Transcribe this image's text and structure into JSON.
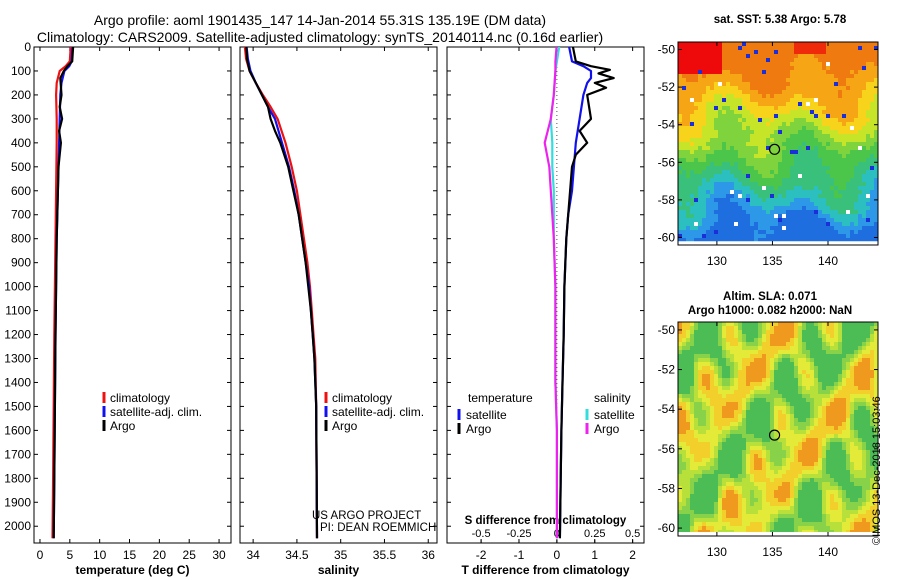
{
  "header": {
    "line1": "Argo profile: aoml 1901435_147 14-Jan-2014 55.31S 135.19E (DM data)",
    "line2": "Climatology: CARS2009. Satellite-adjusted climatology: synTS_20140114.nc (0.16d earlier)"
  },
  "project_text": {
    "line1": "US ARGO PROJECT",
    "line2": "PI: DEAN ROEMMICH"
  },
  "credit": "©IMOS 13-Dec-2018 15:03:46",
  "colors": {
    "climatology": "#ee1111",
    "satellite": "#1111ee",
    "argo": "#000000",
    "salinity_satellite": "#33dddd",
    "salinity_argo": "#ee22ee",
    "marker": "#000000"
  },
  "chart_data": [
    {
      "type": "line",
      "xlabel": "temperature (deg C)",
      "ylabel": "",
      "xlim": [
        -1,
        32
      ],
      "ylim": [
        2070,
        0
      ],
      "x_ticks": [
        "0",
        "5",
        "10",
        "15",
        "20",
        "25",
        "30"
      ],
      "y_ticks": [
        "0",
        "100",
        "200",
        "300",
        "400",
        "500",
        "600",
        "700",
        "800",
        "900",
        "1000",
        "1100",
        "1200",
        "1300",
        "1400",
        "1500",
        "1600",
        "1700",
        "1800",
        "1900",
        "2000"
      ],
      "legend": [
        "climatology",
        "satellite-adj. clim.",
        "Argo"
      ],
      "legend_position": "lower-right",
      "series": [
        {
          "name": "climatology",
          "depth": [
            -20,
            60,
            80,
            100,
            150,
            200,
            300,
            400,
            600,
            800,
            1000,
            1200,
            1500,
            1800,
            2050
          ],
          "values": [
            5.2,
            5.0,
            4.3,
            3.3,
            2.8,
            2.7,
            2.8,
            2.8,
            2.7,
            2.6,
            2.5,
            2.4,
            2.3,
            2.2,
            2.1
          ]
        },
        {
          "name": "satellite-adj. clim.",
          "depth": [
            -20,
            60,
            80,
            100,
            150,
            200,
            300,
            400,
            600,
            800,
            1000,
            1200,
            1500,
            1800,
            2050
          ],
          "values": [
            5.5,
            5.3,
            4.9,
            4.1,
            3.6,
            3.4,
            3.3,
            3.2,
            3.0,
            2.8,
            2.7,
            2.6,
            2.5,
            2.4,
            2.3
          ]
        },
        {
          "name": "Argo",
          "depth": [
            -20,
            60,
            80,
            100,
            130,
            200,
            250,
            300,
            350,
            400,
            500,
            600,
            800,
            1000,
            1200,
            1500,
            1800,
            2050
          ],
          "values": [
            5.6,
            5.4,
            4.6,
            4.0,
            3.4,
            3.6,
            3.3,
            3.7,
            3.2,
            3.5,
            3.1,
            3.0,
            2.8,
            2.7,
            2.6,
            2.5,
            2.4,
            2.3
          ]
        }
      ]
    },
    {
      "type": "line",
      "xlabel": "salinity",
      "xlim": [
        33.85,
        36.1
      ],
      "ylim": [
        2070,
        0
      ],
      "x_ticks": [
        "34",
        "34.5",
        "35",
        "35.5",
        "36"
      ],
      "legend": [
        "climatology",
        "satellite-adj. clim.",
        "Argo"
      ],
      "legend_position": "lower-right",
      "series": [
        {
          "name": "climatology",
          "depth": [
            -20,
            50,
            100,
            150,
            200,
            250,
            300,
            400,
            500,
            600,
            700,
            800,
            900,
            1000,
            1100,
            1200,
            1300,
            1500,
            2050
          ],
          "values": [
            33.9,
            33.92,
            33.96,
            34.03,
            34.11,
            34.2,
            34.28,
            34.37,
            34.44,
            34.5,
            34.54,
            34.58,
            34.62,
            34.65,
            34.67,
            34.69,
            34.71,
            34.72,
            34.73
          ]
        },
        {
          "name": "satellite-adj. clim.",
          "depth": [
            -20,
            50,
            100,
            150,
            200,
            250,
            300,
            400,
            500,
            600,
            700,
            800,
            900,
            1000,
            1100,
            1200,
            1300,
            1500,
            2050
          ],
          "values": [
            33.92,
            33.94,
            33.97,
            34.03,
            34.1,
            34.17,
            34.25,
            34.33,
            34.41,
            34.47,
            34.52,
            34.56,
            34.6,
            34.64,
            34.66,
            34.68,
            34.7,
            34.72,
            34.73
          ]
        },
        {
          "name": "Argo",
          "depth": [
            -20,
            50,
            100,
            150,
            200,
            250,
            300,
            350,
            400,
            500,
            600,
            700,
            800,
            900,
            1000,
            1100,
            1200,
            1300,
            1500,
            2050
          ],
          "values": [
            33.92,
            33.93,
            33.96,
            34.03,
            34.1,
            34.17,
            34.2,
            34.25,
            34.31,
            34.4,
            34.46,
            34.52,
            34.56,
            34.6,
            34.63,
            34.66,
            34.68,
            34.7,
            34.72,
            34.73
          ]
        }
      ]
    },
    {
      "type": "line",
      "xlabel": "T difference from climatology",
      "x2label": "S difference from climatology",
      "xlim": [
        -2.9,
        2.3
      ],
      "ylim": [
        2070,
        0
      ],
      "x_ticks": [
        "-2",
        "-1",
        "0",
        "1",
        "2"
      ],
      "x2_ticks": [
        "-0.5",
        "-0.25",
        "0",
        "0.25",
        "0.5"
      ],
      "legend_temperature": [
        "satellite",
        "Argo"
      ],
      "legend_salinity": [
        "satellite",
        "Argo"
      ],
      "legend_headers": [
        "temperature",
        "salinity"
      ],
      "series": [
        {
          "name": "satellite",
          "group": "temperature",
          "depth": [
            -20,
            60,
            80,
            100,
            130,
            150,
            200,
            300,
            400,
            500,
            600,
            700,
            800,
            1000,
            1200,
            1400,
            1600,
            1800,
            2050
          ],
          "values": [
            0.3,
            0.4,
            0.7,
            0.9,
            0.9,
            0.8,
            0.7,
            0.6,
            0.5,
            0.45,
            0.4,
            0.3,
            0.25,
            0.2,
            0.18,
            0.15,
            0.12,
            0.1,
            0.08
          ]
        },
        {
          "name": "Argo",
          "group": "temperature",
          "depth": [
            -20,
            60,
            80,
            95,
            110,
            130,
            150,
            170,
            200,
            300,
            350,
            400,
            450,
            500,
            600,
            700,
            800,
            1000,
            1200,
            1400,
            1600,
            1800,
            2050
          ],
          "values": [
            0.4,
            0.5,
            0.9,
            1.4,
            1.1,
            1.5,
            1.0,
            1.3,
            0.8,
            0.9,
            0.6,
            0.8,
            0.5,
            0.4,
            0.35,
            0.3,
            0.25,
            0.2,
            0.18,
            0.15,
            0.12,
            0.1,
            0.08
          ]
        },
        {
          "name": "satellite",
          "group": "salinity",
          "depth": [
            -20,
            60,
            100,
            200,
            300,
            400,
            500,
            600,
            700,
            800,
            1000,
            1200,
            1400,
            1600,
            1800,
            2050
          ],
          "values": [
            0.02,
            0.0,
            -0.01,
            -0.02,
            -0.04,
            -0.03,
            -0.03,
            -0.02,
            -0.02,
            -0.02,
            -0.01,
            -0.01,
            -0.01,
            0.0,
            0.0,
            0.0
          ]
        },
        {
          "name": "Argo",
          "group": "salinity",
          "depth": [
            -20,
            60,
            100,
            200,
            300,
            400,
            500,
            600,
            700,
            800,
            1000,
            1200,
            1400,
            1600,
            1800,
            2050
          ],
          "values": [
            0.0,
            -0.01,
            -0.01,
            -0.02,
            -0.04,
            -0.08,
            -0.05,
            -0.04,
            -0.03,
            -0.02,
            -0.01,
            -0.01,
            -0.01,
            0.0,
            0.0,
            0.0
          ]
        }
      ]
    },
    {
      "type": "heatmap",
      "title": "sat. SST: 5.38  Argo: 5.78",
      "x_ticks": [
        "130",
        "135",
        "140"
      ],
      "y_ticks": [
        "-50",
        "-52",
        "-54",
        "-56",
        "-58",
        "-60"
      ],
      "xlim": [
        126.5,
        144.5
      ],
      "ylim": [
        -60.4,
        -49.6
      ],
      "marker": {
        "lon": 135.19,
        "lat": -55.31
      }
    },
    {
      "type": "heatmap",
      "title": "Altim. SLA: 0.071",
      "subtitle": "Argo h1000: 0.082 h2000: NaN",
      "x_ticks": [
        "130",
        "135",
        "140"
      ],
      "y_ticks": [
        "-50",
        "-52",
        "-54",
        "-56",
        "-58",
        "-60"
      ],
      "xlim": [
        126.5,
        144.5
      ],
      "ylim": [
        -60.4,
        -49.6
      ],
      "marker": {
        "lon": 135.19,
        "lat": -55.31
      }
    }
  ]
}
